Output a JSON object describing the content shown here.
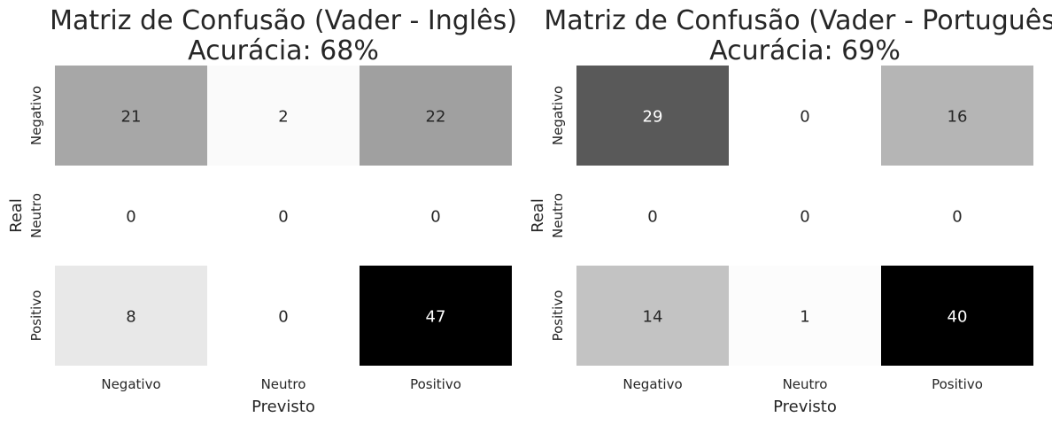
{
  "chart_data": [
    {
      "type": "heatmap",
      "title_line1": "Matriz de Confusão (Vader - Inglês)",
      "title_line2": "Acurácia: 68%",
      "xlabel": "Previsto",
      "ylabel": "Real",
      "x_categories": [
        "Negativo",
        "Neutro",
        "Positivo"
      ],
      "y_categories": [
        "Negativo",
        "Neutro",
        "Positivo"
      ],
      "matrix": [
        [
          21,
          2,
          22
        ],
        [
          0,
          0,
          0
        ],
        [
          8,
          0,
          47
        ]
      ],
      "colormap": "greys",
      "vmin": 0,
      "vmax": 47,
      "colorbar": false
    },
    {
      "type": "heatmap",
      "title_line1": "Matriz de Confusão (Vader - Português)",
      "title_line2": "Acurácia: 69%",
      "xlabel": "Previsto",
      "ylabel": "Real",
      "x_categories": [
        "Negativo",
        "Neutro",
        "Positivo"
      ],
      "y_categories": [
        "Negativo",
        "Neutro",
        "Positivo"
      ],
      "matrix": [
        [
          29,
          0,
          16
        ],
        [
          0,
          0,
          0
        ],
        [
          14,
          1,
          40
        ]
      ],
      "colormap": "greys",
      "vmin": 0,
      "vmax": 40,
      "colorbar": false
    }
  ]
}
